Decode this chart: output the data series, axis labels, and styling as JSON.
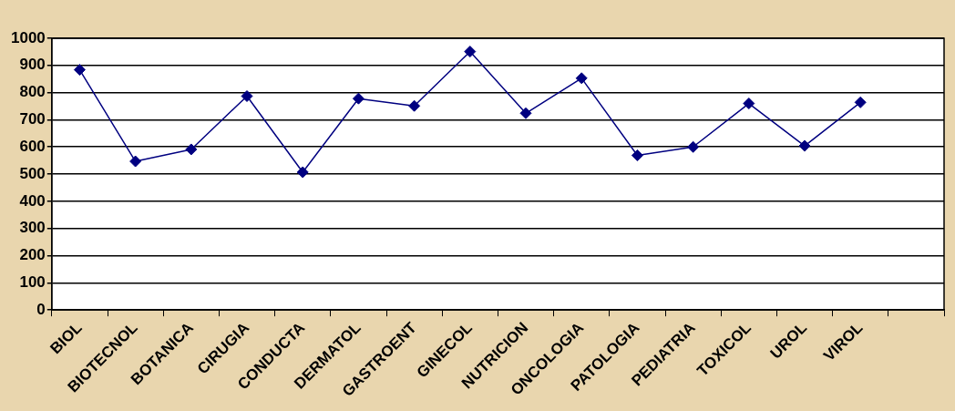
{
  "chart_data": {
    "type": "line",
    "categories": [
      "BIOL",
      "BIOTECNOL",
      "BOTANICA",
      "CIRUGIA",
      "CONDUCTA",
      "DERMATOL",
      "GASTROENT",
      "GINECOL",
      "NUTRICION",
      "ONCOLOGIA",
      "PATOLOGIA",
      "PEDIATRIA",
      "TOXICOL",
      "UROL",
      "VIROL",
      null
    ],
    "series": [
      {
        "color": "#000080",
        "values": [
          884,
          547,
          591,
          787,
          507,
          778,
          751,
          951,
          724,
          853,
          569,
          600,
          760,
          604,
          764,
          null
        ]
      }
    ],
    "ylim": [
      0,
      1000
    ],
    "yticks": [
      0,
      100,
      200,
      300,
      400,
      500,
      600,
      700,
      800,
      900,
      1000
    ],
    "grid": "y",
    "marker": "diamond",
    "line_style": "solid",
    "legend": false
  }
}
